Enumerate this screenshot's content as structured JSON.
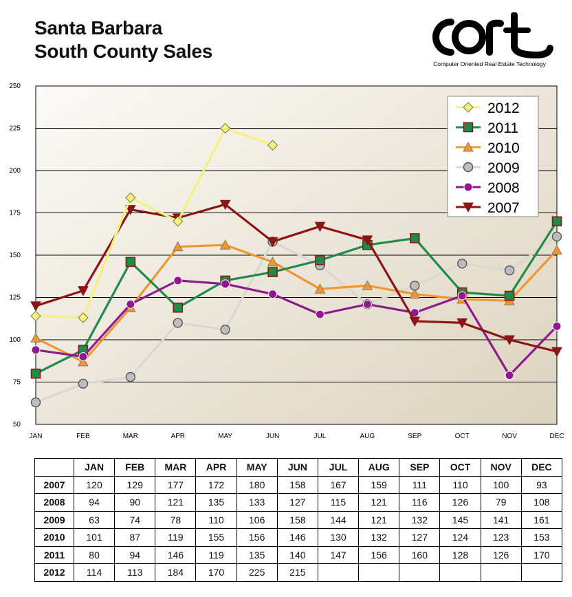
{
  "title": {
    "line1": "Santa Barbara",
    "line2": "South County Sales"
  },
  "logo": {
    "text": "CORT",
    "tagline": "Computer Oriented Real Estate Technology"
  },
  "chart_data": {
    "type": "line",
    "title": "Santa Barbara South County Sales",
    "categories": [
      "JAN",
      "FEB",
      "MAR",
      "APR",
      "MAY",
      "JUN",
      "JUL",
      "AUG",
      "SEP",
      "OCT",
      "NOV",
      "DEC"
    ],
    "ylim": [
      50,
      250
    ],
    "yticks": [
      50,
      75,
      100,
      125,
      150,
      175,
      200,
      225,
      250
    ],
    "grid": true,
    "legend_position": "top-right",
    "series": [
      {
        "name": "2012",
        "color": "#f3f080",
        "marker": "diamond",
        "values": [
          114,
          113,
          184,
          170,
          225,
          215,
          null,
          null,
          null,
          null,
          null,
          null
        ]
      },
      {
        "name": "2011",
        "color": "#1f8a4a",
        "marker": "square",
        "values": [
          80,
          94,
          146,
          119,
          135,
          140,
          147,
          156,
          160,
          128,
          126,
          170
        ]
      },
      {
        "name": "2010",
        "color": "#f0962e",
        "marker": "triangle-up",
        "values": [
          101,
          87,
          119,
          155,
          156,
          146,
          130,
          132,
          127,
          124,
          123,
          153
        ]
      },
      {
        "name": "2009",
        "color": "#d8d8d2",
        "marker": "circle",
        "values": [
          63,
          74,
          78,
          110,
          106,
          158,
          144,
          121,
          132,
          145,
          141,
          161
        ]
      },
      {
        "name": "2008",
        "color": "#8e1a8e",
        "marker": "circle",
        "values": [
          94,
          90,
          121,
          135,
          133,
          127,
          115,
          121,
          116,
          126,
          79,
          108
        ]
      },
      {
        "name": "2007",
        "color": "#8c1414",
        "marker": "triangle-down",
        "values": [
          120,
          129,
          177,
          172,
          180,
          158,
          167,
          159,
          111,
          110,
          100,
          93
        ]
      }
    ]
  },
  "table": {
    "headers": [
      "",
      "JAN",
      "FEB",
      "MAR",
      "APR",
      "MAY",
      "JUN",
      "JUL",
      "AUG",
      "SEP",
      "OCT",
      "NOV",
      "DEC"
    ],
    "rows": [
      [
        "2007",
        "120",
        "129",
        "177",
        "172",
        "180",
        "158",
        "167",
        "159",
        "111",
        "110",
        "100",
        "93"
      ],
      [
        "2008",
        "94",
        "90",
        "121",
        "135",
        "133",
        "127",
        "115",
        "121",
        "116",
        "126",
        "79",
        "108"
      ],
      [
        "2009",
        "63",
        "74",
        "78",
        "110",
        "106",
        "158",
        "144",
        "121",
        "132",
        "145",
        "141",
        "161"
      ],
      [
        "2010",
        "101",
        "87",
        "119",
        "155",
        "156",
        "146",
        "130",
        "132",
        "127",
        "124",
        "123",
        "153"
      ],
      [
        "2011",
        "80",
        "94",
        "146",
        "119",
        "135",
        "140",
        "147",
        "156",
        "160",
        "128",
        "126",
        "170"
      ],
      [
        "2012",
        "114",
        "113",
        "184",
        "170",
        "225",
        "215",
        "",
        "",
        "",
        "",
        "",
        ""
      ]
    ]
  }
}
